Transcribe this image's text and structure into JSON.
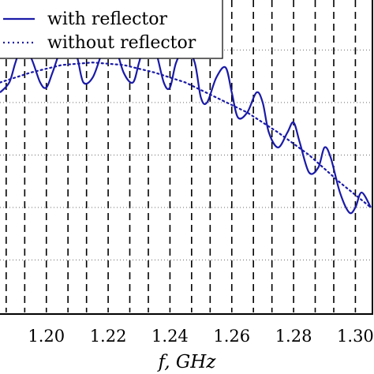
{
  "chart_data": {
    "type": "line",
    "xlabel": "f, GHz",
    "ylabel": "",
    "xlim": [
      1.185,
      1.305
    ],
    "x_ticks": [
      "1.20",
      "1.22",
      "1.24",
      "1.26",
      "1.28",
      "1.30"
    ],
    "x_tick_values": [
      1.2,
      1.22,
      1.24,
      1.26,
      1.28,
      1.3
    ],
    "grid": "dashed vertical and horizontal",
    "legend_position": "top-left",
    "series": [
      {
        "name": "with reflector",
        "color": "#1a1aa8",
        "style": "solid",
        "x": [
          1.185,
          1.188,
          1.19,
          1.192,
          1.195,
          1.198,
          1.2,
          1.202,
          1.205,
          1.208,
          1.21,
          1.212,
          1.215,
          1.218,
          1.22,
          1.222,
          1.225,
          1.228,
          1.23,
          1.232,
          1.235,
          1.238,
          1.24,
          1.242,
          1.245,
          1.248,
          1.25,
          1.252,
          1.255,
          1.258,
          1.26,
          1.262,
          1.265,
          1.268,
          1.27,
          1.272,
          1.275,
          1.278,
          1.28,
          1.282,
          1.285,
          1.288,
          1.29,
          1.292,
          1.295,
          1.298,
          1.3,
          1.302,
          1.305
        ],
        "values": [
          0.58,
          0.62,
          0.7,
          0.76,
          0.72,
          0.62,
          0.6,
          0.66,
          0.76,
          0.78,
          0.72,
          0.62,
          0.64,
          0.74,
          0.8,
          0.78,
          0.66,
          0.62,
          0.7,
          0.78,
          0.76,
          0.62,
          0.6,
          0.7,
          0.76,
          0.7,
          0.56,
          0.54,
          0.64,
          0.68,
          0.58,
          0.48,
          0.5,
          0.58,
          0.54,
          0.42,
          0.36,
          0.42,
          0.46,
          0.38,
          0.26,
          0.28,
          0.36,
          0.32,
          0.18,
          0.1,
          0.12,
          0.18,
          0.12
        ]
      },
      {
        "name": "without reflector",
        "color": "#1a1aa8",
        "style": "dotted",
        "x": [
          1.185,
          1.195,
          1.205,
          1.215,
          1.225,
          1.235,
          1.245,
          1.255,
          1.265,
          1.275,
          1.285,
          1.295,
          1.305
        ],
        "values": [
          0.62,
          0.66,
          0.69,
          0.7,
          0.69,
          0.66,
          0.62,
          0.56,
          0.5,
          0.42,
          0.33,
          0.22,
          0.12
        ]
      }
    ],
    "ylim": [
      -0.3,
      0.95
    ],
    "y_grid_values": [
      0.75,
      0.54,
      0.33,
      0.12,
      -0.09
    ],
    "x_grid_values": [
      1.187,
      1.193,
      1.2,
      1.207,
      1.213,
      1.22,
      1.227,
      1.233,
      1.24,
      1.247,
      1.253,
      1.26,
      1.267,
      1.273,
      1.28,
      1.287,
      1.293,
      1.3
    ]
  }
}
